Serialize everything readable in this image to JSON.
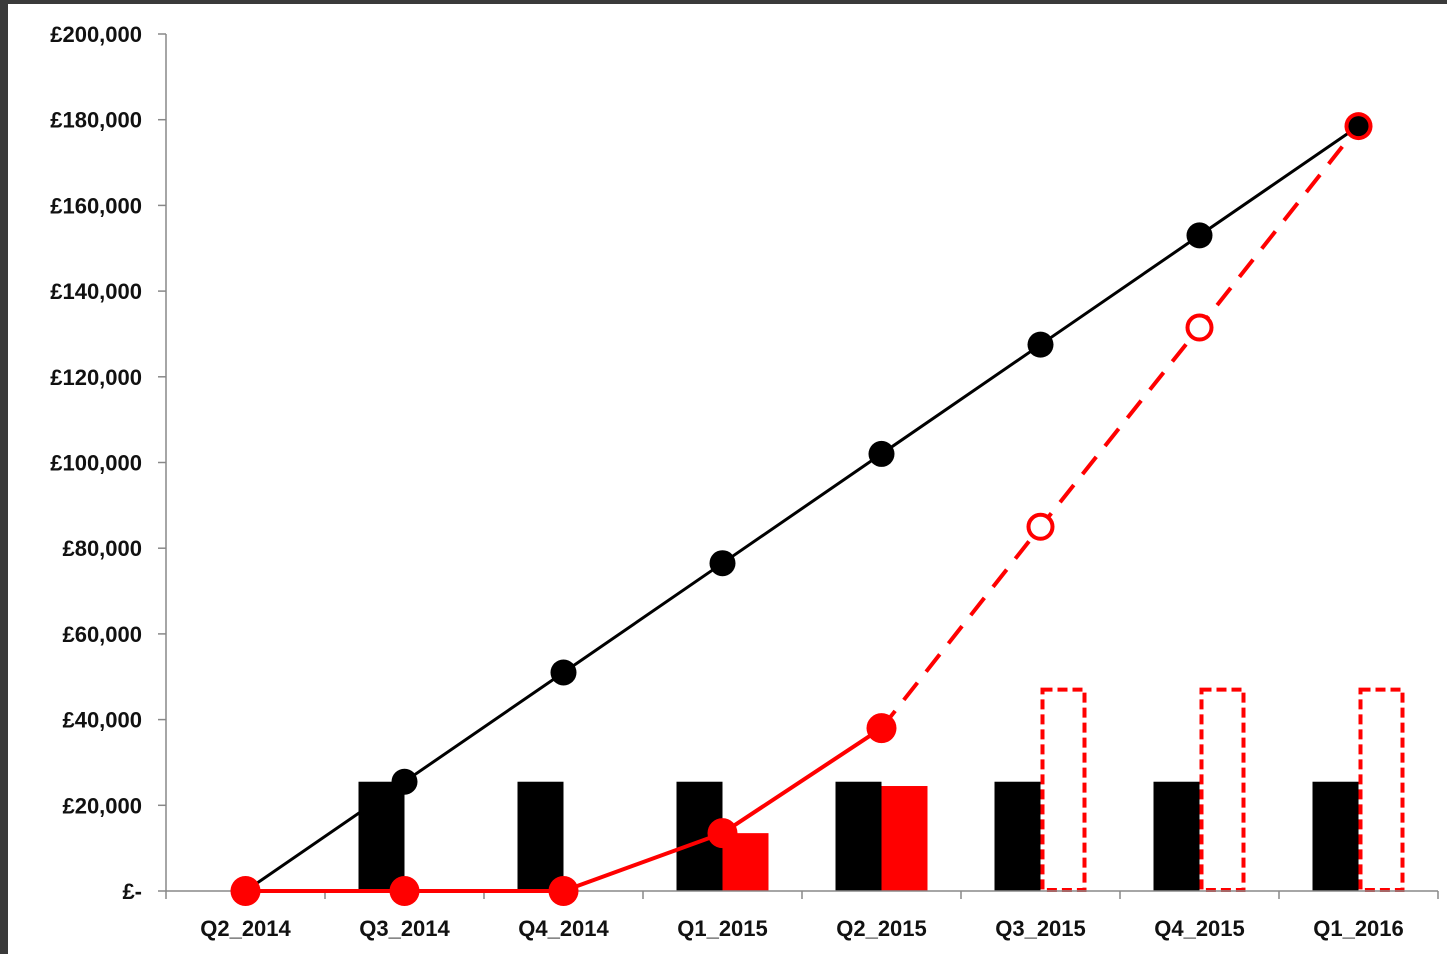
{
  "chart_data": {
    "type": "bar",
    "title": "",
    "xlabel": "",
    "ylabel": "",
    "categories": [
      "Q2_2014",
      "Q3_2014",
      "Q4_2014",
      "Q1_2015",
      "Q2_2015",
      "Q3_2015",
      "Q4_2015",
      "Q1_2016"
    ],
    "ylim": [
      0,
      200000
    ],
    "yticks": [
      0,
      20000,
      40000,
      60000,
      80000,
      100000,
      120000,
      140000,
      160000,
      180000,
      200000
    ],
    "ytick_labels": [
      "£-",
      "£20,000",
      "£40,000",
      "£60,000",
      "£80,000",
      "£100,000",
      "£120,000",
      "£140,000",
      "£160,000",
      "£180,000",
      "£200,000"
    ],
    "grid": false,
    "legend": "none",
    "bar_series": [
      {
        "values": [
          0,
          25500,
          25500,
          25500,
          25500,
          25500,
          25500,
          25500
        ],
        "style": "solid",
        "color": "#000000"
      },
      {
        "values": [
          0,
          0,
          0,
          13500,
          24500,
          null,
          null,
          null
        ],
        "style": "solid",
        "color": "#ff0000"
      },
      {
        "values": [
          null,
          null,
          null,
          null,
          null,
          47000,
          47000,
          47000
        ],
        "style": "dashed-outline",
        "color": "#ff0000"
      }
    ],
    "line_series": [
      {
        "values": [
          0,
          25500,
          51000,
          76500,
          102000,
          127500,
          153000,
          178500
        ],
        "style": "solid",
        "marker": "filled-circle",
        "color": "#000000"
      },
      {
        "values": [
          0,
          0,
          0,
          13500,
          38000,
          null,
          null,
          null
        ],
        "style": "solid",
        "marker": "filled-circle",
        "color": "#ff0000"
      },
      {
        "values": [
          null,
          null,
          null,
          null,
          38000,
          85000,
          131500,
          178500
        ],
        "style": "dashed",
        "marker": "hollow-circle",
        "color": "#ff0000"
      }
    ]
  }
}
